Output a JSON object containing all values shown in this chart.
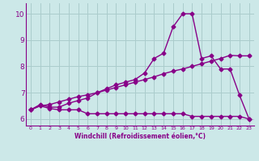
{
  "background_color": "#cce8e8",
  "grid_color": "#aacccc",
  "line_color": "#880088",
  "xlabel": "Windchill (Refroidissement éolien,°C)",
  "ylabel_ticks": [
    6,
    7,
    8,
    9,
    10
  ],
  "xlim": [
    -0.5,
    23.5
  ],
  "ylim": [
    5.75,
    10.4
  ],
  "xticks": [
    0,
    1,
    2,
    3,
    4,
    5,
    6,
    7,
    8,
    9,
    10,
    11,
    12,
    13,
    14,
    15,
    16,
    17,
    18,
    19,
    20,
    21,
    22,
    23
  ],
  "line1_x": [
    0,
    1,
    2,
    3,
    4,
    5,
    6,
    7,
    8,
    9,
    10,
    11,
    12,
    13,
    14,
    15,
    16,
    17,
    18,
    19,
    20,
    21,
    22,
    23
  ],
  "line1_y": [
    6.35,
    6.5,
    6.4,
    6.35,
    6.35,
    6.35,
    6.2,
    6.2,
    6.2,
    6.2,
    6.2,
    6.2,
    6.2,
    6.2,
    6.2,
    6.2,
    6.2,
    6.1,
    6.1,
    6.1,
    6.1,
    6.1,
    6.1,
    6.0
  ],
  "line2_x": [
    0,
    1,
    2,
    3,
    4,
    5,
    6,
    7,
    8,
    9,
    10,
    11,
    12,
    13,
    14,
    15,
    16,
    17,
    18,
    19,
    20,
    21,
    22,
    23
  ],
  "line2_y": [
    6.35,
    6.5,
    6.55,
    6.65,
    6.75,
    6.85,
    6.92,
    7.0,
    7.1,
    7.2,
    7.3,
    7.4,
    7.5,
    7.6,
    7.72,
    7.82,
    7.9,
    8.0,
    8.1,
    8.2,
    8.3,
    8.42,
    8.4,
    8.4
  ],
  "line3_x": [
    0,
    1,
    2,
    3,
    4,
    5,
    6,
    7,
    8,
    9,
    10,
    11,
    12,
    13,
    14,
    15,
    16,
    17,
    18,
    19,
    20,
    21,
    22,
    23
  ],
  "line3_y": [
    6.35,
    6.55,
    6.45,
    6.45,
    6.6,
    6.7,
    6.8,
    7.0,
    7.15,
    7.3,
    7.4,
    7.5,
    7.75,
    8.3,
    8.5,
    9.5,
    10.0,
    10.0,
    8.3,
    8.4,
    7.9,
    7.9,
    6.9,
    6.0
  ],
  "markersize": 2.5,
  "linewidth": 1.0
}
